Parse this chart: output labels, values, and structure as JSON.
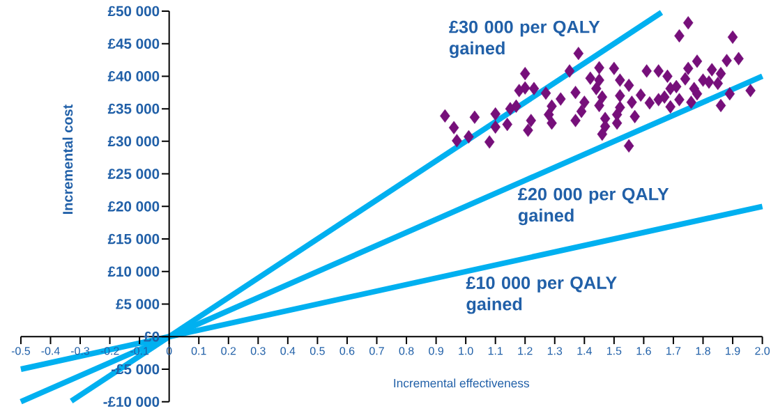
{
  "chart_data": {
    "type": "scatter",
    "xlabel": "Incremental effectiveness",
    "ylabel": "Incremental cost",
    "xlim": [
      -0.5,
      2.0
    ],
    "ylim": [
      -10000,
      50000
    ],
    "xticks": [
      -0.5,
      -0.4,
      -0.3,
      -0.2,
      -0.1,
      0,
      0.1,
      0.2,
      0.3,
      0.4,
      0.5,
      0.6,
      0.7,
      0.8,
      0.9,
      {
        "value": 1,
        "label": "1.0"
      },
      1.1,
      1.2,
      1.3,
      1.4,
      1.5,
      1.6,
      1.7,
      1.8,
      1.9,
      {
        "value": 2,
        "label": "2.0"
      }
    ],
    "yticks": [
      {
        "value": -10000,
        "label": "-£10 000"
      },
      {
        "value": -5000,
        "label": "-£5 000"
      },
      {
        "value": 0,
        "label": "£0"
      },
      {
        "value": 5000,
        "label": "£5 000"
      },
      {
        "value": 10000,
        "label": "£10 000"
      },
      {
        "value": 15000,
        "label": "£15 000"
      },
      {
        "value": 20000,
        "label": "£20 000"
      },
      {
        "value": 25000,
        "label": "£25 000"
      },
      {
        "value": 30000,
        "label": "£30 000"
      },
      {
        "value": 35000,
        "label": "£35 000"
      },
      {
        "value": 40000,
        "label": "£40 000"
      },
      {
        "value": 45000,
        "label": "£45 000"
      },
      {
        "value": 50000,
        "label": "£50 000"
      }
    ],
    "grid": false,
    "series": [
      {
        "type": "line",
        "color": "#00b0f0",
        "x": [
          -0.33,
          1.66
        ],
        "values": [
          -9900,
          49800
        ]
      },
      {
        "type": "line",
        "color": "#00b0f0",
        "x": [
          -0.5,
          2.0
        ],
        "values": [
          -10000,
          40000
        ]
      },
      {
        "type": "line",
        "color": "#00b0f0",
        "x": [
          -0.5,
          2.0
        ],
        "values": [
          -5000,
          20000
        ]
      },
      {
        "color": "#760f7a",
        "marker": "diamond",
        "x": [
          0.93,
          0.96,
          0.97,
          1.01,
          1.03,
          1.08,
          1.1,
          1.1,
          1.14,
          1.15,
          1.17,
          1.2,
          1.18,
          1.2,
          1.23,
          1.27,
          1.29,
          1.32,
          1.28,
          1.29,
          1.22,
          1.21,
          1.35,
          1.38,
          1.37,
          1.37,
          1.4,
          1.39,
          1.42,
          1.75,
          1.72,
          1.9,
          1.45,
          1.5,
          1.45,
          1.44,
          1.52,
          1.55,
          1.46,
          1.45,
          1.52,
          1.56,
          1.59,
          1.52,
          1.51,
          1.47,
          1.47,
          1.46,
          1.51,
          1.57,
          1.55,
          1.61,
          1.65,
          1.68,
          1.62,
          1.65,
          1.67,
          1.69,
          1.71,
          1.72,
          1.69,
          1.75,
          1.78,
          1.74,
          1.77,
          1.78,
          1.76,
          1.8,
          1.83,
          1.82,
          1.85,
          1.86,
          1.88,
          1.92,
          1.89,
          1.86,
          1.96
        ],
        "values": [
          33900,
          32100,
          30100,
          30700,
          33700,
          29900,
          34200,
          32200,
          32600,
          35000,
          35400,
          40400,
          37800,
          38200,
          38100,
          37400,
          35400,
          36500,
          34100,
          32800,
          33200,
          31700,
          40800,
          43500,
          37500,
          33200,
          36000,
          34600,
          39700,
          48200,
          46200,
          46000,
          41300,
          41200,
          39400,
          38100,
          39400,
          38600,
          36800,
          35500,
          37000,
          36000,
          37100,
          35200,
          34100,
          33500,
          32300,
          31100,
          32800,
          33800,
          29300,
          40800,
          40800,
          40000,
          35900,
          36400,
          36800,
          38100,
          38400,
          36400,
          35300,
          41200,
          42300,
          39600,
          38100,
          37300,
          36000,
          39400,
          41000,
          39100,
          38900,
          40400,
          42400,
          42700,
          37300,
          35500,
          37800
        ]
      }
    ],
    "annotations": [
      "£30 000 per QALY gained",
      "£20 000 per QALY gained",
      "£10 000 per QALY gained"
    ]
  }
}
